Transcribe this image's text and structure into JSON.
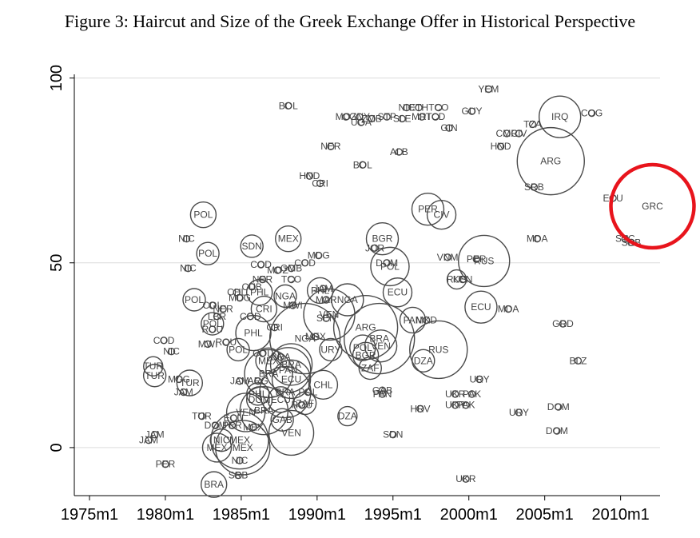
{
  "chart_data": {
    "type": "scatter",
    "title": "Figure 3: Haircut and Size of the Greek Exchange Offer in Historical Perspective",
    "xlabel": "",
    "ylabel": "",
    "xlim": [
      1974.0,
      2012.6
    ],
    "ylim": [
      -13,
      101
    ],
    "grid": true,
    "x_ticks": [
      {
        "label": "1975m1",
        "value": 1975
      },
      {
        "label": "1980m1",
        "value": 1980
      },
      {
        "label": "1985m1",
        "value": 1985
      },
      {
        "label": "1990m1",
        "value": 1990
      },
      {
        "label": "1995m1",
        "value": 1995
      },
      {
        "label": "2000m1",
        "value": 2000
      },
      {
        "label": "2005m1",
        "value": 2005
      },
      {
        "label": "2010m1",
        "value": 2010
      }
    ],
    "y_ticks": [
      {
        "label": "0",
        "value": 0
      },
      {
        "label": "50",
        "value": 50
      },
      {
        "label": "100",
        "value": 100
      }
    ],
    "highlight": {
      "label": "GRC",
      "x": 2012.1,
      "y": 65.3,
      "color": "#e8141c"
    },
    "points": [
      {
        "label": "YEM",
        "x": 2001.3,
        "y": 97,
        "size": 0
      },
      {
        "label": "BOL",
        "x": 1988.1,
        "y": 92.5,
        "size": 0
      },
      {
        "label": "NIC",
        "x": 1995.9,
        "y": 92,
        "size": 0
      },
      {
        "label": "ETH",
        "x": 1996.7,
        "y": 92,
        "size": 0
      },
      {
        "label": "TCO",
        "x": 1998.0,
        "y": 92,
        "size": 0
      },
      {
        "label": "GUY",
        "x": 2000.2,
        "y": 91,
        "size": 0
      },
      {
        "label": "IRQ",
        "x": 2006.0,
        "y": 89.5,
        "size": 1.1
      },
      {
        "label": "COG",
        "x": 2008.1,
        "y": 90.5,
        "size": 0
      },
      {
        "label": "MOZ",
        "x": 1991.9,
        "y": 89.5,
        "size": 0
      },
      {
        "label": "GNY",
        "x": 1992.8,
        "y": 89.5,
        "size": 0
      },
      {
        "label": "UGA",
        "x": 1992.9,
        "y": 88,
        "size": 0
      },
      {
        "label": "ZMB",
        "x": 1993.6,
        "y": 89,
        "size": 0
      },
      {
        "label": "STP",
        "x": 1994.6,
        "y": 89.5,
        "size": 0
      },
      {
        "label": "SLE",
        "x": 1995.6,
        "y": 89,
        "size": 0
      },
      {
        "label": "MRT",
        "x": 1996.9,
        "y": 89.5,
        "size": 0
      },
      {
        "label": "TCD",
        "x": 1997.8,
        "y": 89.5,
        "size": 0
      },
      {
        "label": "GIN",
        "x": 1998.7,
        "y": 86.5,
        "size": 0
      },
      {
        "label": "TZA",
        "x": 2004.2,
        "y": 87.5,
        "size": 0
      },
      {
        "label": "CMR",
        "x": 2002.5,
        "y": 85,
        "size": 0
      },
      {
        "label": "CIV",
        "x": 2003.3,
        "y": 85,
        "size": 0
      },
      {
        "label": "NER",
        "x": 1990.9,
        "y": 81.5,
        "size": 0
      },
      {
        "label": "HND",
        "x": 2002.1,
        "y": 81.5,
        "size": 0
      },
      {
        "label": "ALB",
        "x": 1995.4,
        "y": 80,
        "size": 0
      },
      {
        "label": "ARG",
        "x": 2005.4,
        "y": 77.5,
        "size": 1.9
      },
      {
        "label": "BOL",
        "x": 1993.0,
        "y": 76.5,
        "size": 0
      },
      {
        "label": "HND",
        "x": 1989.5,
        "y": 73.5,
        "size": 0
      },
      {
        "label": "CRI",
        "x": 1990.2,
        "y": 71.5,
        "size": 0
      },
      {
        "label": "SRB",
        "x": 2004.3,
        "y": 70.5,
        "size": 0
      },
      {
        "label": "ECU",
        "x": 2009.5,
        "y": 67.5,
        "size": 0
      },
      {
        "label": "PER",
        "x": 1997.3,
        "y": 64.5,
        "size": 0.8
      },
      {
        "label": "CIV",
        "x": 1998.2,
        "y": 63,
        "size": 0.7
      },
      {
        "label": "POL",
        "x": 1982.5,
        "y": 63,
        "size": 0.6
      },
      {
        "label": "NIC",
        "x": 1981.4,
        "y": 56.5,
        "size": 0
      },
      {
        "label": "MEX",
        "x": 1988.1,
        "y": 56.5,
        "size": 0.6
      },
      {
        "label": "BGR",
        "x": 1994.3,
        "y": 56.5,
        "size": 0.8
      },
      {
        "label": "MDA",
        "x": 2004.5,
        "y": 56.5,
        "size": 0
      },
      {
        "label": "SYC",
        "x": 2010.3,
        "y": 56.5,
        "size": 0
      },
      {
        "label": "SRB",
        "x": 2010.7,
        "y": 55.5,
        "size": 0
      },
      {
        "label": "SDN",
        "x": 1985.7,
        "y": 54.5,
        "size": 0.5
      },
      {
        "label": "JOR",
        "x": 1993.8,
        "y": 54,
        "size": 0
      },
      {
        "label": "POL",
        "x": 1982.8,
        "y": 52.5,
        "size": 0.5
      },
      {
        "label": "MDG",
        "x": 1990.1,
        "y": 52,
        "size": 0
      },
      {
        "label": "VNM",
        "x": 1998.6,
        "y": 51.5,
        "size": 0
      },
      {
        "label": "RUS",
        "x": 2001.0,
        "y": 50.5,
        "size": 1.4
      },
      {
        "label": "PER",
        "x": 2000.5,
        "y": 51,
        "size": 0
      },
      {
        "label": "DOM",
        "x": 1994.6,
        "y": 50,
        "size": 0
      },
      {
        "label": "POL",
        "x": 1994.8,
        "y": 49,
        "size": 1.0
      },
      {
        "label": "COD",
        "x": 1986.3,
        "y": 49.5,
        "size": 0
      },
      {
        "label": "COD",
        "x": 1989.2,
        "y": 50,
        "size": 0
      },
      {
        "label": "NIC",
        "x": 1981.5,
        "y": 48.5,
        "size": 0
      },
      {
        "label": "MOZ",
        "x": 1987.4,
        "y": 48,
        "size": 0
      },
      {
        "label": "GMB",
        "x": 1988.3,
        "y": 48.5,
        "size": 0
      },
      {
        "label": "NER",
        "x": 1986.4,
        "y": 45.5,
        "size": 0
      },
      {
        "label": "TCO",
        "x": 1988.3,
        "y": 45.5,
        "size": 0
      },
      {
        "label": "KEN",
        "x": 1999.6,
        "y": 45.5,
        "size": 0
      },
      {
        "label": "RUS",
        "x": 1999.2,
        "y": 45.5,
        "size": 0.4
      },
      {
        "label": "CUB",
        "x": 1985.7,
        "y": 43.5,
        "size": 0
      },
      {
        "label": "JAM",
        "x": 1990.4,
        "y": 43,
        "size": 0
      },
      {
        "label": "PHL",
        "x": 1990.2,
        "y": 42.5,
        "size": 0.6
      },
      {
        "label": "ECU",
        "x": 1995.3,
        "y": 42,
        "size": 0.7
      },
      {
        "label": "PHL",
        "x": 1986.2,
        "y": 42,
        "size": 0.6
      },
      {
        "label": "CHL",
        "x": 1984.7,
        "y": 42,
        "size": 0
      },
      {
        "label": "MDG",
        "x": 1984.9,
        "y": 40.5,
        "size": 0
      },
      {
        "label": "NGA",
        "x": 1987.9,
        "y": 41,
        "size": 0.5
      },
      {
        "label": "POL",
        "x": 1981.9,
        "y": 40,
        "size": 0.5
      },
      {
        "label": "NGA",
        "x": 1992.0,
        "y": 40,
        "size": 0.8
      },
      {
        "label": "MAR",
        "x": 1990.6,
        "y": 40,
        "size": 0
      },
      {
        "label": "MWI",
        "x": 1988.4,
        "y": 38.5,
        "size": 0
      },
      {
        "label": "COL",
        "x": 1983.1,
        "y": 38.5,
        "size": 0
      },
      {
        "label": "NER",
        "x": 1983.8,
        "y": 37.5,
        "size": 0
      },
      {
        "label": "CRI",
        "x": 1986.5,
        "y": 37.5,
        "size": 0.6
      },
      {
        "label": "VEN",
        "x": 1990.8,
        "y": 36,
        "size": 1.4
      },
      {
        "label": "ECU",
        "x": 2000.8,
        "y": 38,
        "size": 0.8
      },
      {
        "label": "MDA",
        "x": 2002.6,
        "y": 37.5,
        "size": 0
      },
      {
        "label": "LBR",
        "x": 1983.4,
        "y": 35.5,
        "size": 0
      },
      {
        "label": "COD",
        "x": 1985.6,
        "y": 35.5,
        "size": 0
      },
      {
        "label": "SEN",
        "x": 1990.6,
        "y": 35,
        "size": 0
      },
      {
        "label": "PAN",
        "x": 1996.3,
        "y": 34.5,
        "size": 0.6
      },
      {
        "label": "MKD",
        "x": 1997.2,
        "y": 34.5,
        "size": 0
      },
      {
        "label": "GRD",
        "x": 2006.2,
        "y": 33.5,
        "size": 0
      },
      {
        "label": "POL",
        "x": 1983.1,
        "y": 33.5,
        "size": 0.5
      },
      {
        "label": "ARG",
        "x": 1993.2,
        "y": 32.5,
        "size": 1.8
      },
      {
        "label": "ROU",
        "x": 1983.1,
        "y": 32,
        "size": 0
      },
      {
        "label": "CRI",
        "x": 1987.2,
        "y": 32.5,
        "size": 0
      },
      {
        "label": "PHL",
        "x": 1985.8,
        "y": 31,
        "size": 0.9
      },
      {
        "label": "BRA",
        "x": 1994.1,
        "y": 29.5,
        "size": 2.0
      },
      {
        "label": "NGA",
        "x": 1989.2,
        "y": 29.5,
        "size": 2.0
      },
      {
        "label": "MEX",
        "x": 1989.9,
        "y": 30,
        "size": 0
      },
      {
        "label": "COD",
        "x": 1979.9,
        "y": 29,
        "size": 0
      },
      {
        "label": "MWI",
        "x": 1982.8,
        "y": 28,
        "size": 0
      },
      {
        "label": "ROU",
        "x": 1984.0,
        "y": 28.5,
        "size": 0
      },
      {
        "label": "VEN",
        "x": 1994.2,
        "y": 27.5,
        "size": 0.8
      },
      {
        "label": "POL",
        "x": 1993.0,
        "y": 27,
        "size": 0.6
      },
      {
        "label": "RUS",
        "x": 1998.0,
        "y": 26.5,
        "size": 1.6
      },
      {
        "label": "POL",
        "x": 1984.8,
        "y": 26.5,
        "size": 0.5
      },
      {
        "label": "URY",
        "x": 1990.9,
        "y": 26.5,
        "size": 0.5
      },
      {
        "label": "NIC",
        "x": 1980.4,
        "y": 26,
        "size": 0
      },
      {
        "label": "BGR",
        "x": 1993.2,
        "y": 25,
        "size": 0.6
      },
      {
        "label": "COL",
        "x": 1986.4,
        "y": 25.5,
        "size": 0
      },
      {
        "label": "BRA",
        "x": 1987.6,
        "y": 24.5,
        "size": 0
      },
      {
        "label": "BLZ",
        "x": 2007.2,
        "y": 23.5,
        "size": 0
      },
      {
        "label": "DZA",
        "x": 1997.0,
        "y": 23.5,
        "size": 0.5
      },
      {
        "label": "MEX",
        "x": 1986.8,
        "y": 23.5,
        "size": 0.6
      },
      {
        "label": "BRA",
        "x": 1988.3,
        "y": 22.5,
        "size": 1.1
      },
      {
        "label": "TUR",
        "x": 1979.2,
        "y": 22,
        "size": 0.4
      },
      {
        "label": "ZAF",
        "x": 1993.5,
        "y": 21.5,
        "size": 0.5
      },
      {
        "label": "PAN",
        "x": 1988.1,
        "y": 21,
        "size": 1.2
      },
      {
        "label": "BRA",
        "x": 1986.8,
        "y": 20,
        "size": 1.3
      },
      {
        "label": "TUR",
        "x": 1979.3,
        "y": 19.5,
        "size": 0.5
      },
      {
        "label": "MDG",
        "x": 1980.9,
        "y": 18.5,
        "size": 0
      },
      {
        "label": "ECU",
        "x": 1988.3,
        "y": 18.5,
        "size": 1.0
      },
      {
        "label": "URY",
        "x": 2000.7,
        "y": 18.5,
        "size": 0
      },
      {
        "label": "JAM",
        "x": 1984.9,
        "y": 18,
        "size": 0
      },
      {
        "label": "ARG",
        "x": 1986.1,
        "y": 18,
        "size": 0
      },
      {
        "label": "TUR",
        "x": 1981.6,
        "y": 17.5,
        "size": 0.6
      },
      {
        "label": "CHL",
        "x": 1990.4,
        "y": 17,
        "size": 0.7
      },
      {
        "label": "GAB",
        "x": 1994.3,
        "y": 15.5,
        "size": 0
      },
      {
        "label": "PAN",
        "x": 1994.3,
        "y": 14.5,
        "size": 0
      },
      {
        "label": "BRA",
        "x": 1987.9,
        "y": 15,
        "size": 1.4
      },
      {
        "label": "POL",
        "x": 1989.4,
        "y": 15,
        "size": 0
      },
      {
        "label": "UKR",
        "x": 1999.1,
        "y": 14.5,
        "size": 0
      },
      {
        "label": "PAK",
        "x": 2000.2,
        "y": 14.5,
        "size": 0
      },
      {
        "label": "JAM",
        "x": 1981.2,
        "y": 15,
        "size": 0
      },
      {
        "label": "PHL",
        "x": 1986.1,
        "y": 14.5,
        "size": 0.5
      },
      {
        "label": "DOM",
        "x": 1986.2,
        "y": 13,
        "size": 0.6
      },
      {
        "label": "ECU",
        "x": 1987.6,
        "y": 13,
        "size": 0.6
      },
      {
        "label": "ZAF",
        "x": 1989.2,
        "y": 12,
        "size": 0.5
      },
      {
        "label": "ROU",
        "x": 1989.0,
        "y": 11.5,
        "size": 0
      },
      {
        "label": "UKR",
        "x": 1999.1,
        "y": 11.5,
        "size": 0
      },
      {
        "label": "PAK",
        "x": 1999.8,
        "y": 11.5,
        "size": 0
      },
      {
        "label": "HRV",
        "x": 1996.8,
        "y": 10.5,
        "size": 0
      },
      {
        "label": "DOM",
        "x": 2005.9,
        "y": 11,
        "size": 0
      },
      {
        "label": "URY",
        "x": 2003.3,
        "y": 9.5,
        "size": 0
      },
      {
        "label": "BRA",
        "x": 1986.5,
        "y": 10,
        "size": 1.3
      },
      {
        "label": "VEN",
        "x": 1985.3,
        "y": 9.5,
        "size": 1.0
      },
      {
        "label": "TUR",
        "x": 1982.4,
        "y": 8.5,
        "size": 0
      },
      {
        "label": "DZA",
        "x": 1992.0,
        "y": 8.5,
        "size": 0.4
      },
      {
        "label": "ECU",
        "x": 1984.5,
        "y": 8,
        "size": 0
      },
      {
        "label": "GAB",
        "x": 1987.7,
        "y": 7.5,
        "size": 0.5
      },
      {
        "label": "DOM",
        "x": 1983.3,
        "y": 6,
        "size": 0
      },
      {
        "label": "PER",
        "x": 1984.4,
        "y": 6,
        "size": 0
      },
      {
        "label": "MEX",
        "x": 1985.8,
        "y": 5.5,
        "size": 0
      },
      {
        "label": "VEN",
        "x": 1988.3,
        "y": 4,
        "size": 1.2
      },
      {
        "label": "DOM",
        "x": 2005.8,
        "y": 4.5,
        "size": 0
      },
      {
        "label": "JAM",
        "x": 1979.3,
        "y": 3.5,
        "size": 0
      },
      {
        "label": "SDN",
        "x": 1995.0,
        "y": 3.5,
        "size": 0
      },
      {
        "label": "MEX",
        "x": 1984.9,
        "y": 2,
        "size": 1.6
      },
      {
        "label": "JAM",
        "x": 1978.9,
        "y": 2,
        "size": 0
      },
      {
        "label": "MEX",
        "x": 1985.1,
        "y": 0,
        "size": 1.5
      },
      {
        "label": "NIC",
        "x": 1983.7,
        "y": 2,
        "size": 0.5
      },
      {
        "label": "MEX",
        "x": 1983.4,
        "y": 0,
        "size": 0.7
      },
      {
        "label": "NIC",
        "x": 1984.9,
        "y": -3.5,
        "size": 0
      },
      {
        "label": "PER",
        "x": 1980.0,
        "y": -4.5,
        "size": 0
      },
      {
        "label": "SRB",
        "x": 1984.8,
        "y": -7.5,
        "size": 0
      },
      {
        "label": "BRA",
        "x": 1983.2,
        "y": -10,
        "size": 0.6
      },
      {
        "label": "UKR",
        "x": 1999.8,
        "y": -8.5,
        "size": 0
      }
    ]
  }
}
